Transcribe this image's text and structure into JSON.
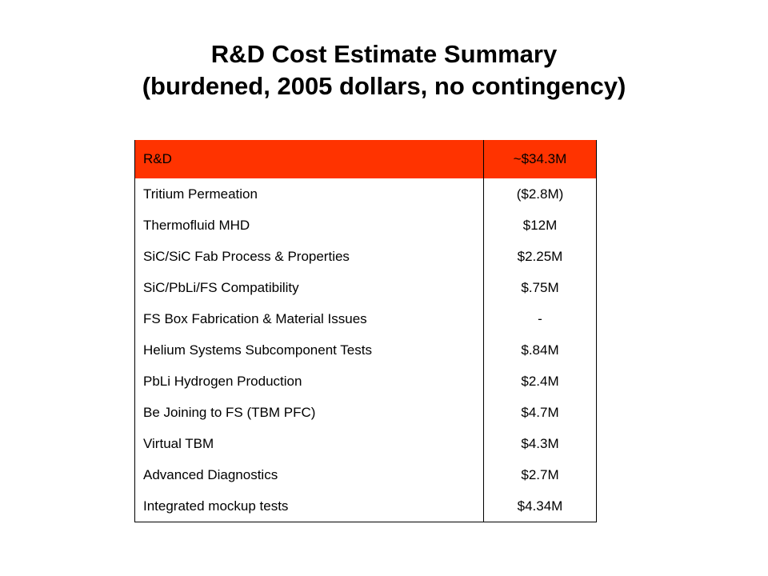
{
  "slide": {
    "title_line1": "R&D Cost Estimate Summary",
    "title_line2": "(burdened, 2005 dollars, no contingency)"
  },
  "table": {
    "header": {
      "label": "R&D",
      "value": "~$34.3M"
    },
    "rows": [
      {
        "label": "Tritium Permeation",
        "value": "($2.8M)"
      },
      {
        "label": "Thermofluid MHD",
        "value": "$12M"
      },
      {
        "label": "SiC/SiC Fab Process & Properties",
        "value": "$2.25M"
      },
      {
        "label": "SiC/PbLi/FS Compatibility",
        "value": "$.75M"
      },
      {
        "label": "FS Box Fabrication & Material Issues",
        "value": "-"
      },
      {
        "label": "Helium Systems Subcomponent Tests",
        "value": "$.84M"
      },
      {
        "label": "PbLi Hydrogen Production",
        "value": "$2.4M"
      },
      {
        "label": "Be Joining to FS (TBM PFC)",
        "value": "$4.7M"
      },
      {
        "label": "Virtual TBM",
        "value": "$4.3M"
      },
      {
        "label": "Advanced Diagnostics",
        "value": "$2.7M"
      },
      {
        "label": "Integrated mockup tests",
        "value": "$4.34M"
      }
    ]
  },
  "colors": {
    "header_background": "#ff3300"
  }
}
